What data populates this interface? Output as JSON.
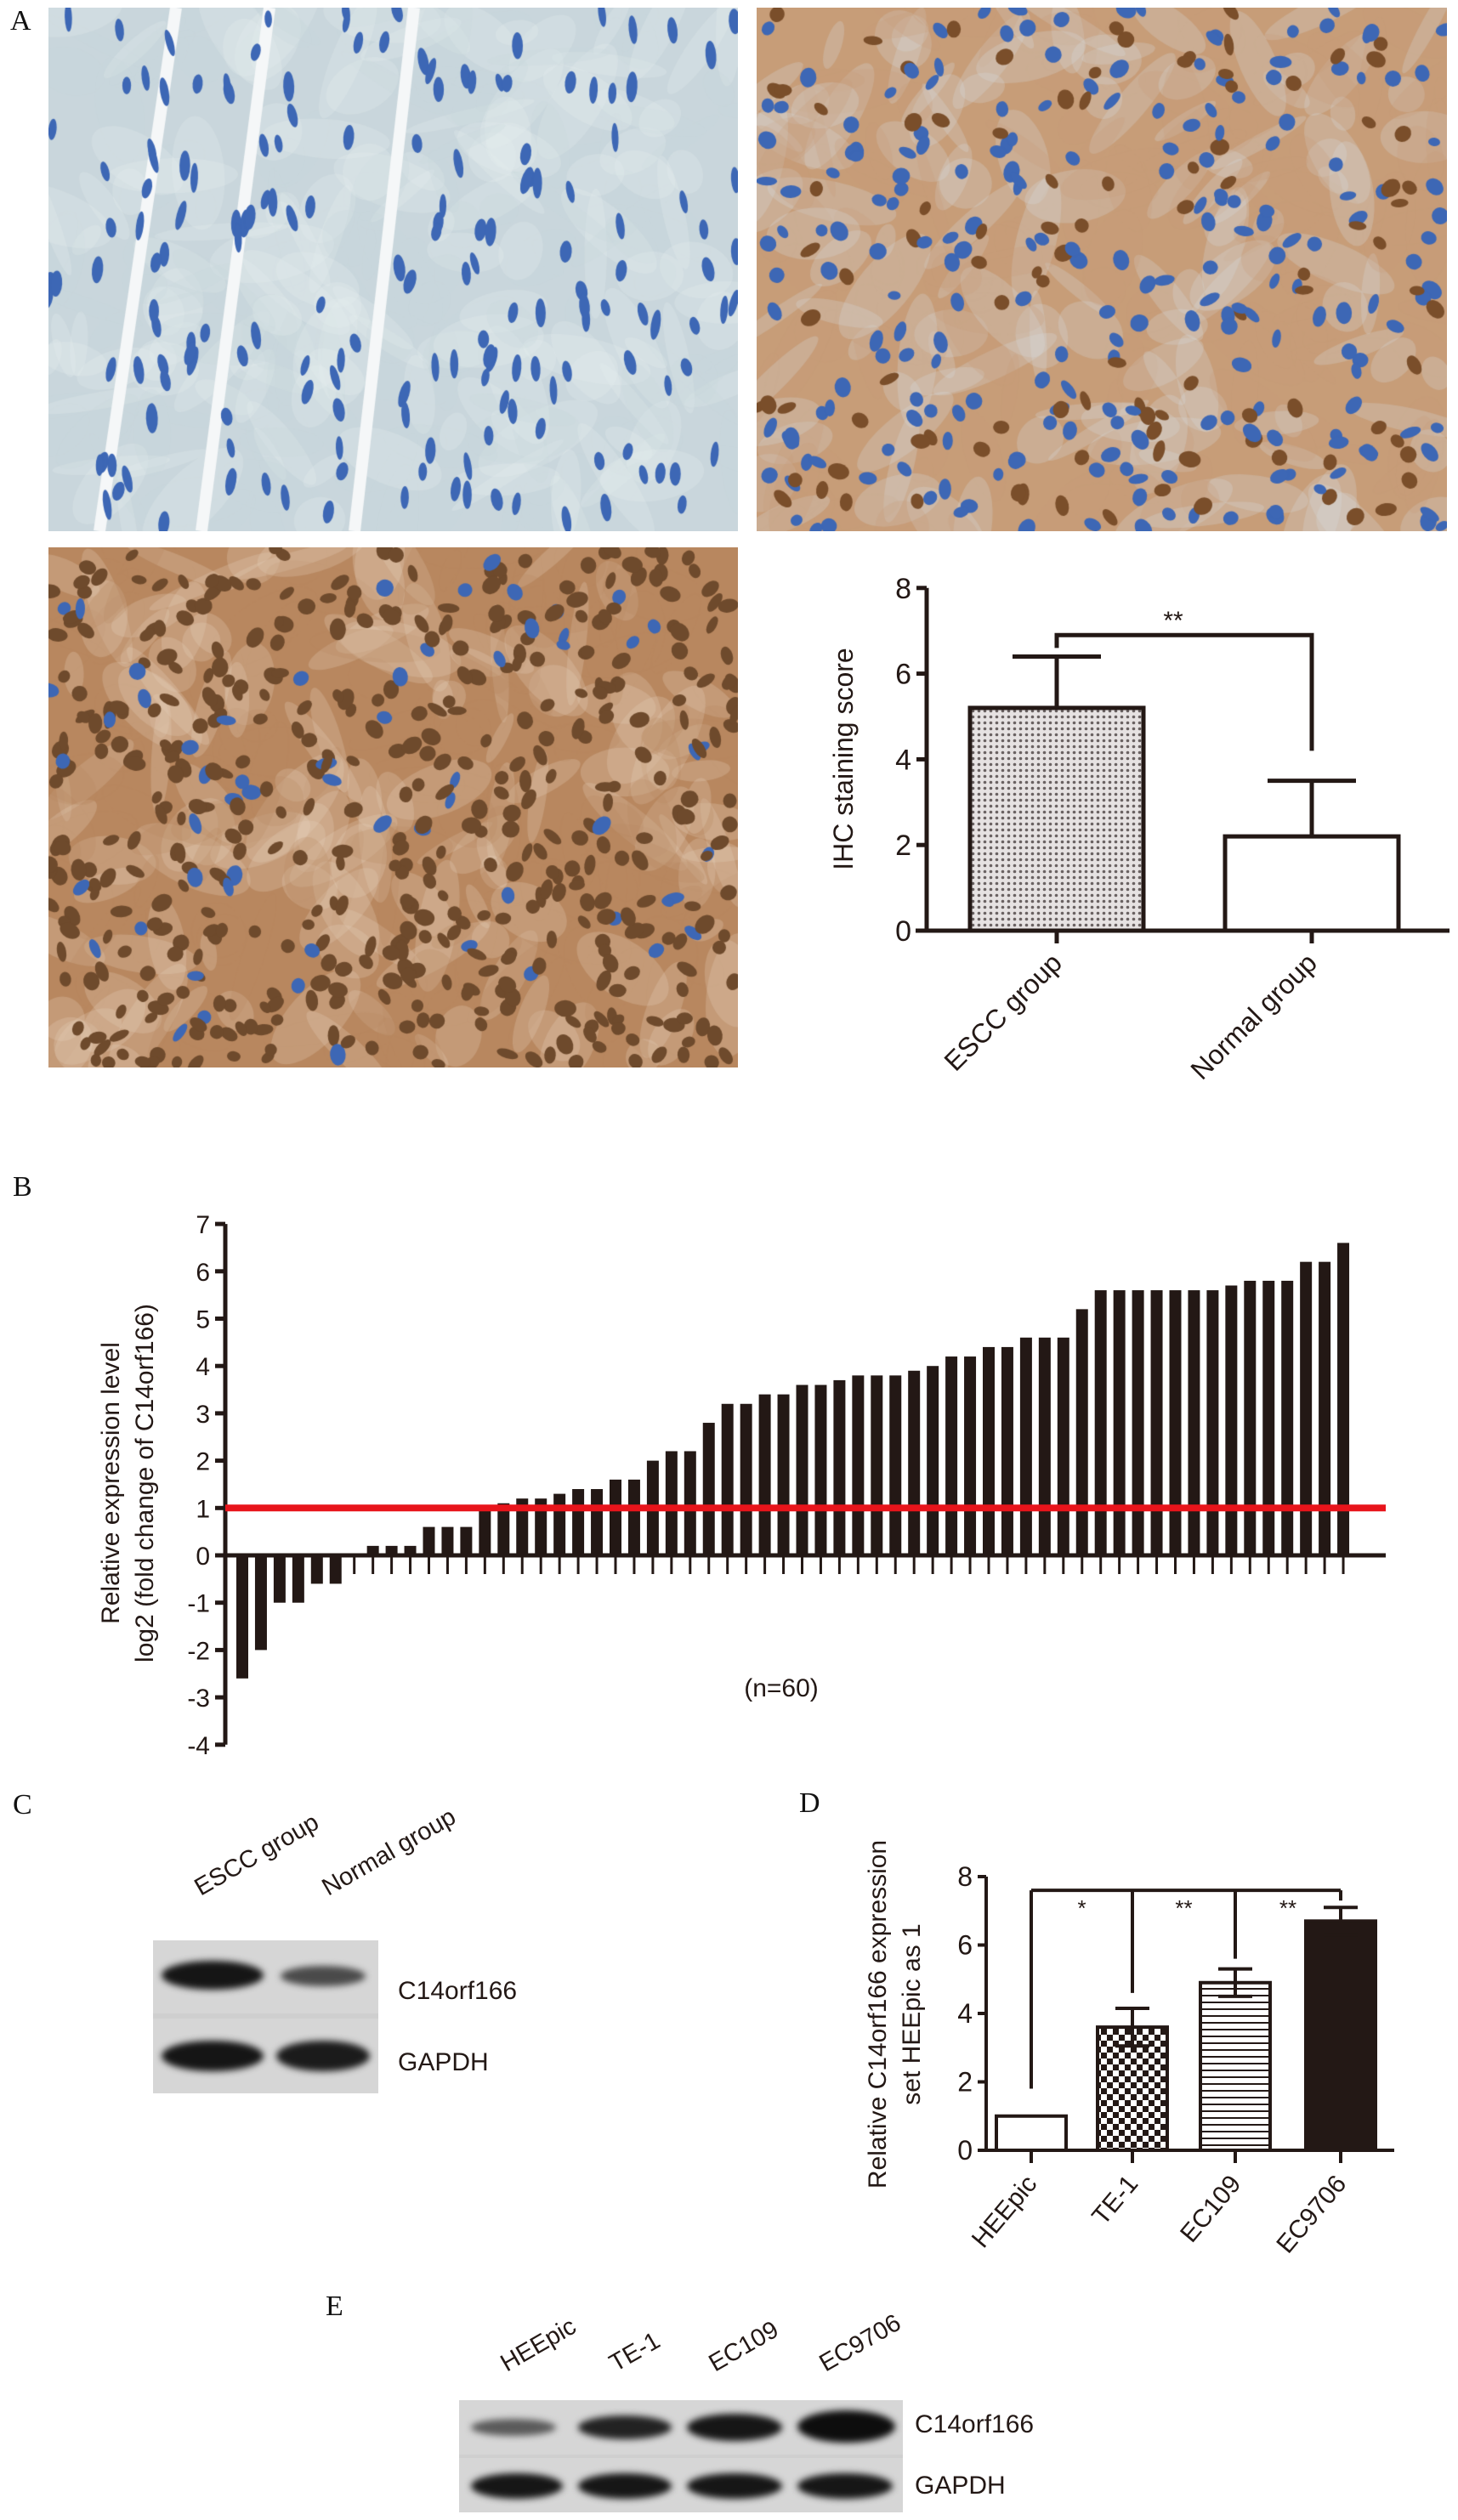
{
  "panels": {
    "A": "A",
    "B": "B",
    "C": "C",
    "D": "D",
    "E": "E"
  },
  "histology": [
    {
      "name": "normal-tissue",
      "background": "#c9d6dc",
      "nucleus": "#3d67b5",
      "stroma": "#e9eef0"
    },
    {
      "name": "escc-moderate",
      "background": "#c79d78",
      "nucleus": "#4a6fb0",
      "stroma": "#d8dfe3"
    },
    {
      "name": "escc-strong",
      "background": "#b8875f",
      "nucleus": "#6e4a2c",
      "stroma": "#e6d3bf"
    }
  ],
  "chart_data": [
    {
      "type": "bar",
      "panel": "A",
      "categories": [
        "ESCC group",
        "Normal group"
      ],
      "values": [
        5.2,
        2.2
      ],
      "errors": [
        1.2,
        1.3
      ],
      "ylabel": "IHC staining score",
      "ylim": [
        0,
        8
      ],
      "yticks": [
        "0",
        "2",
        "4",
        "6",
        "8"
      ],
      "significance": [
        {
          "from": "ESCC group",
          "to": "Normal group",
          "label": "**"
        }
      ]
    },
    {
      "type": "bar",
      "panel": "B",
      "ylabel": [
        "Relative expression level",
        "log2 (fold change of C14orf166)"
      ],
      "ylim": [
        -4,
        7
      ],
      "yticks": [
        "-4",
        "-3",
        "-2",
        "-1",
        "0",
        "1",
        "2",
        "3",
        "4",
        "5",
        "6",
        "7"
      ],
      "annotation": "(n=60)",
      "threshold": {
        "value": 1,
        "color": "#e8141b"
      },
      "values": [
        -2.6,
        -2.0,
        -1.0,
        -1.0,
        -0.6,
        -0.6,
        0,
        0.2,
        0.2,
        0.2,
        0.6,
        0.6,
        0.6,
        1.0,
        1.1,
        1.2,
        1.2,
        1.3,
        1.4,
        1.4,
        1.6,
        1.6,
        2.0,
        2.2,
        2.2,
        2.8,
        3.2,
        3.2,
        3.4,
        3.4,
        3.6,
        3.6,
        3.7,
        3.8,
        3.8,
        3.8,
        3.9,
        4.0,
        4.2,
        4.2,
        4.4,
        4.4,
        4.6,
        4.6,
        4.6,
        5.2,
        5.6,
        5.6,
        5.6,
        5.6,
        5.6,
        5.6,
        5.6,
        5.7,
        5.8,
        5.8,
        5.8,
        6.2,
        6.2,
        6.6
      ]
    },
    {
      "type": "bar",
      "panel": "D",
      "categories": [
        "HEEpic",
        "TE-1",
        "EC109",
        "EC9706"
      ],
      "values": [
        1.0,
        3.6,
        4.9,
        6.7
      ],
      "errors": [
        0,
        0.55,
        0.4,
        0.4
      ],
      "ylabel": [
        "Relative C14orf166 expression",
        "set HEEpic as 1"
      ],
      "ylim": [
        0,
        8
      ],
      "yticks": [
        "0",
        "2",
        "4",
        "6",
        "8"
      ],
      "significance": [
        {
          "label": "*"
        },
        {
          "label": "**"
        },
        {
          "label": "**"
        }
      ]
    }
  ],
  "blot_c": {
    "lanes": [
      "ESCC group",
      "Normal group"
    ],
    "rows": [
      "C14orf166",
      "GAPDH"
    ]
  },
  "blot_e": {
    "lanes": [
      "HEEpic",
      "TE-1",
      "EC109",
      "EC9706"
    ],
    "rows": [
      "C14orf166",
      "GAPDH"
    ]
  }
}
